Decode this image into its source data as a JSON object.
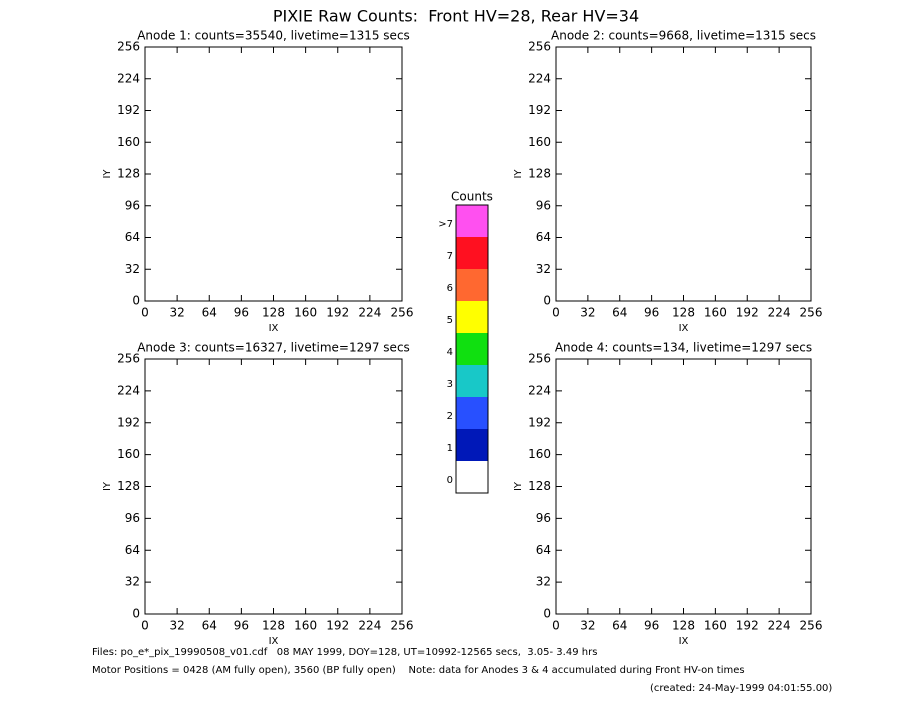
{
  "title": "PIXIE Raw Counts:  Front HV=28, Rear HV=34",
  "chart_data": [
    {
      "type": "heatmap",
      "title": "Anode 1: counts=35540, livetime=1315 secs",
      "xlabel": "IX",
      "ylabel": "IY",
      "xlim": [
        0,
        256
      ],
      "ylim": [
        0,
        256
      ],
      "xticks": [
        0,
        32,
        64,
        96,
        128,
        160,
        192,
        224,
        256
      ],
      "yticks": [
        0,
        32,
        64,
        96,
        128,
        160,
        192,
        224,
        256
      ]
    },
    {
      "type": "heatmap",
      "title": "Anode 2: counts=9668, livetime=1315 secs",
      "xlabel": "IX",
      "ylabel": "IY",
      "xlim": [
        0,
        256
      ],
      "ylim": [
        0,
        256
      ],
      "xticks": [
        0,
        32,
        64,
        96,
        128,
        160,
        192,
        224,
        256
      ],
      "yticks": [
        0,
        32,
        64,
        96,
        128,
        160,
        192,
        224,
        256
      ]
    },
    {
      "type": "heatmap",
      "title": "Anode 3: counts=16327, livetime=1297 secs",
      "xlabel": "IX",
      "ylabel": "IY",
      "xlim": [
        0,
        256
      ],
      "ylim": [
        0,
        256
      ],
      "xticks": [
        0,
        32,
        64,
        96,
        128,
        160,
        192,
        224,
        256
      ],
      "yticks": [
        0,
        32,
        64,
        96,
        128,
        160,
        192,
        224,
        256
      ]
    },
    {
      "type": "heatmap",
      "title": "Anode 4: counts=134, livetime=1297 secs",
      "xlabel": "IX",
      "ylabel": "IY",
      "xlim": [
        0,
        256
      ],
      "ylim": [
        0,
        256
      ],
      "xticks": [
        0,
        32,
        64,
        96,
        128,
        160,
        192,
        224,
        256
      ],
      "yticks": [
        0,
        32,
        64,
        96,
        128,
        160,
        192,
        224,
        256
      ]
    }
  ],
  "colorbar": {
    "title": "Counts",
    "ticks": [
      0,
      1,
      2,
      3,
      4,
      5,
      6,
      7,
      {
        "value": 8,
        "label": ">7"
      }
    ],
    "colors": [
      "#ffffff",
      "#0018b8",
      "#2850ff",
      "#18c8c8",
      "#10e010",
      "#ffff00",
      "#ff6830",
      "#ff1020",
      "#ff50f0"
    ]
  },
  "footer": [
    "Files: po_e*_pix_19990508_v01.cdf   08 MAY 1999, DOY=128, UT=10992-12565 secs,  3.05- 3.49 hrs",
    "Motor Positions = 0428 (AM fully open), 3560 (BP fully open)    Note: data for Anodes 3 & 4 accumulated during Front HV-on times",
    "(created: 24-May-1999 04:01:55.00)"
  ]
}
